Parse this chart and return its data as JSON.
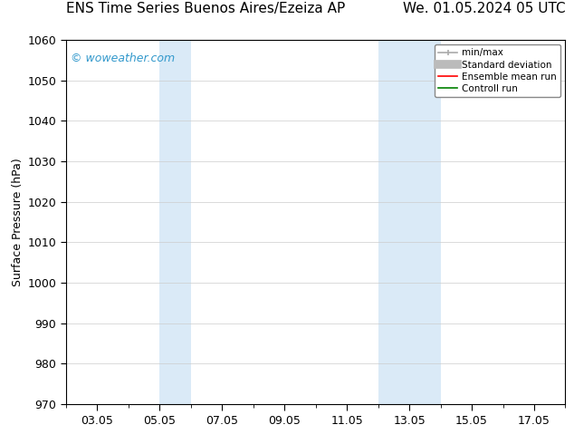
{
  "title_left": "ENS Time Series Buenos Aires/Ezeiza AP",
  "title_right": "We. 01.05.2024 05 UTC",
  "ylabel": "Surface Pressure (hPa)",
  "ylim": [
    970,
    1060
  ],
  "yticks": [
    970,
    980,
    990,
    1000,
    1010,
    1020,
    1030,
    1040,
    1050,
    1060
  ],
  "xtick_labels": [
    "03.05",
    "05.05",
    "07.05",
    "09.05",
    "11.05",
    "13.05",
    "15.05",
    "17.05"
  ],
  "xtick_positions": [
    2,
    4,
    6,
    8,
    10,
    12,
    14,
    16
  ],
  "xlim": [
    1,
    17
  ],
  "background_color": "#ffffff",
  "plot_bg_color": "#ffffff",
  "shaded_bands": [
    {
      "x_start": 4,
      "x_end": 5,
      "color": "#daeaf7"
    },
    {
      "x_start": 11,
      "x_end": 13,
      "color": "#daeaf7"
    }
  ],
  "legend_items": [
    {
      "label": "min/max",
      "color": "#aaaaaa",
      "lw": 1.2,
      "type": "minmax"
    },
    {
      "label": "Standard deviation",
      "color": "#bbbbbb",
      "lw": 7,
      "type": "thick"
    },
    {
      "label": "Ensemble mean run",
      "color": "#ff0000",
      "lw": 1.2,
      "type": "line"
    },
    {
      "label": "Controll run",
      "color": "#008000",
      "lw": 1.2,
      "type": "line"
    }
  ],
  "watermark": "© woweather.com",
  "watermark_color": "#3399cc",
  "grid_color": "#cccccc",
  "tick_color": "#000000",
  "font_size": 9,
  "title_font_size": 11
}
